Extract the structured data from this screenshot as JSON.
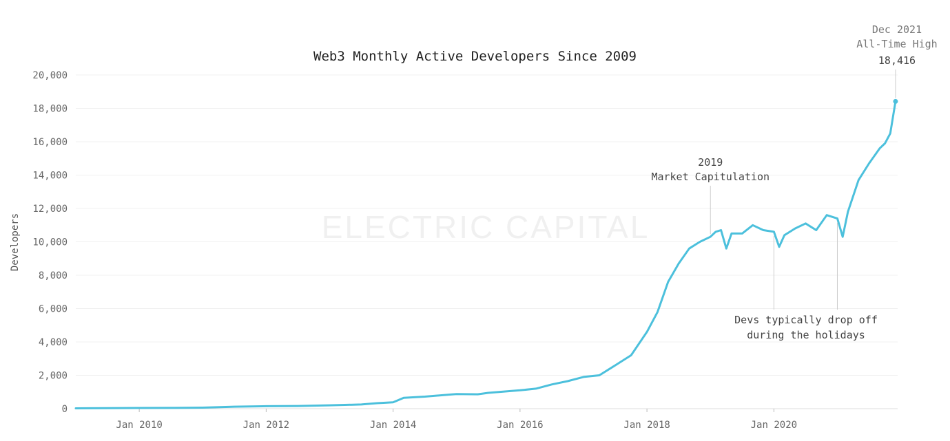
{
  "chart_data": {
    "type": "line",
    "title": "Web3 Monthly Active Developers Since 2009",
    "xlabel": "",
    "ylabel": "Developers",
    "ylim": [
      0,
      20000
    ],
    "yticks": [
      "0",
      "2,000",
      "4,000",
      "6,000",
      "8,000",
      "10,000",
      "12,000",
      "14,000",
      "16,000",
      "18,000",
      "20,000"
    ],
    "xticks": [
      {
        "label": "Jan 2010",
        "x": "2010-01"
      },
      {
        "label": "Jan 2012",
        "x": "2012-01"
      },
      {
        "label": "Jan 2014",
        "x": "2014-01"
      },
      {
        "label": "Jan 2016",
        "x": "2016-01"
      },
      {
        "label": "Jan 2018",
        "x": "2018-01"
      },
      {
        "label": "Jan 2020",
        "x": "2020-01"
      }
    ],
    "grid": true,
    "color": "#4cc0dc",
    "watermark": "ELECTRIC CAPITAL",
    "series": [
      {
        "points": [
          [
            "2009-01",
            20
          ],
          [
            "2009-07",
            30
          ],
          [
            "2010-01",
            40
          ],
          [
            "2010-07",
            45
          ],
          [
            "2011-01",
            60
          ],
          [
            "2011-07",
            120
          ],
          [
            "2012-01",
            150
          ],
          [
            "2012-07",
            160
          ],
          [
            "2013-01",
            200
          ],
          [
            "2013-07",
            250
          ],
          [
            "2013-10",
            330
          ],
          [
            "2014-01",
            380
          ],
          [
            "2014-03",
            650
          ],
          [
            "2014-07",
            720
          ],
          [
            "2015-01",
            880
          ],
          [
            "2015-05",
            860
          ],
          [
            "2015-07",
            950
          ],
          [
            "2016-01",
            1100
          ],
          [
            "2016-04",
            1200
          ],
          [
            "2016-07",
            1450
          ],
          [
            "2016-10",
            1650
          ],
          [
            "2017-01",
            1900
          ],
          [
            "2017-04",
            2000
          ],
          [
            "2017-07",
            2600
          ],
          [
            "2017-10",
            3200
          ],
          [
            "2018-01",
            4600
          ],
          [
            "2018-03",
            5800
          ],
          [
            "2018-05",
            7600
          ],
          [
            "2018-07",
            8700
          ],
          [
            "2018-09",
            9600
          ],
          [
            "2018-11",
            10000
          ],
          [
            "2019-01",
            10300
          ],
          [
            "2019-02",
            10600
          ],
          [
            "2019-03",
            10700
          ],
          [
            "2019-04",
            9600
          ],
          [
            "2019-05",
            10500
          ],
          [
            "2019-07",
            10500
          ],
          [
            "2019-09",
            11000
          ],
          [
            "2019-11",
            10700
          ],
          [
            "2020-01",
            10600
          ],
          [
            "2020-02",
            9700
          ],
          [
            "2020-03",
            10400
          ],
          [
            "2020-05",
            10800
          ],
          [
            "2020-07",
            11100
          ],
          [
            "2020-09",
            10700
          ],
          [
            "2020-11",
            11600
          ],
          [
            "2021-01",
            11400
          ],
          [
            "2021-02",
            10300
          ],
          [
            "2021-03",
            11800
          ],
          [
            "2021-05",
            13700
          ],
          [
            "2021-07",
            14700
          ],
          [
            "2021-09",
            15600
          ],
          [
            "2021-10",
            15900
          ],
          [
            "2021-11",
            16500
          ],
          [
            "2021-12",
            18416
          ]
        ]
      }
    ],
    "annotations": [
      {
        "lines": [
          "2019",
          "Market Capitulation"
        ],
        "x": "2019-01"
      },
      {
        "lines": [
          "Devs typically drop off",
          "during the holidays"
        ],
        "x": [
          "2020-01",
          "2021-01"
        ]
      },
      {
        "lines": [
          "Dec 2021",
          "All-Time High",
          "18,416"
        ],
        "x": "2021-12"
      }
    ]
  }
}
